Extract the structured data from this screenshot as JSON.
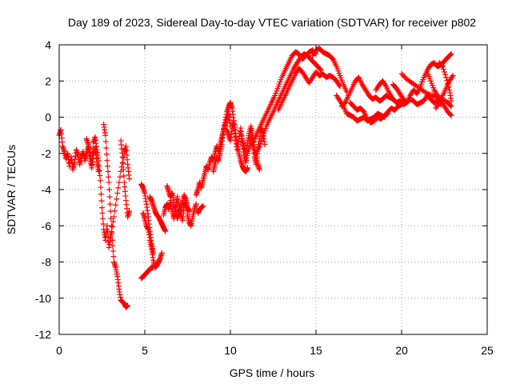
{
  "chart_data": {
    "type": "scatter",
    "title": "Day 189 of 2023, Sidereal Day-to-day VTEC variation (SDTVAR) for receiver p802",
    "xlabel": "GPS time / hours",
    "ylabel": "SDTVAR / TECUs",
    "xlim": [
      0,
      25
    ],
    "ylim": [
      -12,
      4
    ],
    "xticks": [
      0,
      5,
      10,
      15,
      20,
      25
    ],
    "xtick_labels": [
      "0",
      "5",
      "10",
      "15",
      "20",
      "25"
    ],
    "yticks": [
      -12,
      -10,
      -8,
      -6,
      -4,
      -2,
      0,
      2,
      4
    ],
    "ytick_labels": [
      "-12",
      "-10",
      "-8",
      "-6",
      "-4",
      "-2",
      "0",
      "2",
      "4"
    ],
    "grid": true,
    "legend": "none",
    "marker": "+",
    "color": "#ff0000",
    "series": [
      {
        "x": [
          0.0,
          0.1,
          0.2,
          0.3,
          0.4,
          0.5,
          0.6,
          0.7,
          0.8,
          0.9,
          1.0,
          1.1,
          1.2,
          1.3,
          1.4,
          1.5,
          1.6,
          1.7,
          1.8,
          1.9,
          2.0,
          2.1,
          2.2,
          2.3
        ],
        "y": [
          -1.0,
          -0.7,
          -1.6,
          -1.9,
          -2.3,
          -2.0,
          -2.7,
          -2.2,
          -2.9,
          -2.5,
          -1.8,
          -2.1,
          -2.6,
          -2.2,
          -1.9,
          -2.4,
          -2.0,
          -1.6,
          -2.3,
          -2.8,
          -2.1,
          -1.7,
          -2.5,
          -3.0
        ]
      },
      {
        "x": [
          1.6,
          1.7,
          1.8,
          1.9,
          2.0,
          2.1,
          2.2,
          2.3,
          2.4,
          2.5,
          2.6,
          2.7,
          2.8,
          2.9,
          3.0
        ],
        "y": [
          -1.2,
          -1.5,
          -2.0,
          -2.6,
          -1.4,
          -1.1,
          -1.8,
          -2.4,
          -3.5,
          -5.0,
          -6.2,
          -6.8,
          -6.0,
          -7.2,
          -6.5
        ]
      },
      {
        "x": [
          2.6,
          2.7,
          2.8,
          2.9,
          3.0,
          3.1,
          3.2,
          3.3,
          3.4,
          3.5,
          3.6,
          3.7,
          3.8,
          3.9,
          4.0
        ],
        "y": [
          -0.4,
          -1.0,
          -2.4,
          -3.6,
          -5.2,
          -6.8,
          -8.0,
          -8.3,
          -8.8,
          -9.5,
          -10.1,
          -10.2,
          -10.3,
          -10.5,
          -10.4
        ]
      },
      {
        "x": [
          3.0,
          3.2,
          3.4,
          3.6,
          3.8,
          3.9,
          4.0,
          4.1
        ],
        "y": [
          -6.6,
          -5.5,
          -4.2,
          -3.0,
          -2.0,
          -1.6,
          -2.6,
          -3.4
        ]
      },
      {
        "x": [
          3.6,
          3.7,
          3.8,
          3.9,
          4.0,
          4.1
        ],
        "y": [
          -1.3,
          -2.2,
          -3.6,
          -4.6,
          -5.5,
          -5.2
        ]
      },
      {
        "x": [
          4.8,
          4.9,
          5.0,
          5.1,
          5.2,
          5.3,
          5.4,
          5.5
        ],
        "y": [
          -3.7,
          -3.9,
          -4.2,
          -4.8,
          -5.5,
          -6.3,
          -7.0,
          -7.5
        ]
      },
      {
        "x": [
          4.9,
          5.0,
          5.1,
          5.2,
          5.3,
          5.4,
          5.5,
          5.6,
          5.7,
          5.8,
          5.9,
          6.0
        ],
        "y": [
          -5.3,
          -5.6,
          -6.0,
          -6.2,
          -6.8,
          -7.3,
          -7.9,
          -8.3,
          -8.2,
          -8.0,
          -7.8,
          -7.5
        ]
      },
      {
        "x": [
          4.8,
          4.9,
          5.0,
          5.1,
          5.2,
          5.3,
          5.4,
          5.5
        ],
        "y": [
          -8.9,
          -8.8,
          -8.7,
          -8.6,
          -8.5,
          -8.4,
          -8.3,
          -8.3
        ]
      },
      {
        "x": [
          5.3,
          5.4,
          5.5,
          5.6,
          5.7,
          5.8,
          5.9,
          6.0,
          6.1,
          6.2
        ],
        "y": [
          -4.4,
          -4.6,
          -4.9,
          -5.2,
          -5.4,
          -5.5,
          -5.7,
          -5.9,
          -6.1,
          -6.3
        ]
      },
      {
        "x": [
          6.1,
          6.2,
          6.3,
          6.4,
          6.5,
          6.6,
          6.7,
          6.8,
          6.9,
          7.0,
          7.1,
          7.2,
          7.3,
          7.4,
          7.5,
          7.6,
          7.7,
          7.8,
          7.9,
          8.0
        ],
        "y": [
          -5.4,
          -5.0,
          -4.8,
          -5.1,
          -4.6,
          -5.2,
          -5.6,
          -5.0,
          -4.4,
          -4.9,
          -5.3,
          -5.7,
          -4.9,
          -4.5,
          -5.4,
          -5.8,
          -6.0,
          -5.5,
          -5.1,
          -4.8
        ]
      },
      {
        "x": [
          6.3,
          6.4,
          6.5,
          6.6,
          6.7,
          6.8,
          6.9,
          7.0,
          7.1,
          7.2,
          7.3,
          7.4,
          7.5,
          7.6
        ],
        "y": [
          -3.8,
          -4.1,
          -4.4,
          -4.2,
          -4.7,
          -5.2,
          -5.6,
          -5.3,
          -5.0,
          -4.7,
          -4.3,
          -4.6,
          -5.0,
          -5.2
        ]
      },
      {
        "x": [
          8.0,
          8.1,
          8.2,
          8.3,
          8.4,
          8.5,
          8.6,
          8.7,
          8.8,
          8.9,
          9.0,
          9.1,
          9.2,
          9.3,
          9.4,
          9.5,
          9.6,
          9.7,
          9.8,
          9.9,
          10.0
        ],
        "y": [
          -4.3,
          -4.0,
          -3.6,
          -3.9,
          -3.5,
          -3.1,
          -2.7,
          -2.9,
          -2.5,
          -2.2,
          -2.4,
          -2.0,
          -1.6,
          -1.9,
          -1.5,
          -1.1,
          -0.7,
          -0.4,
          -0.1,
          0.2,
          -0.5
        ]
      },
      {
        "x": [
          8.1,
          8.2,
          8.3,
          8.4
        ],
        "y": [
          -5.3,
          -5.1,
          -5.0,
          -4.9
        ]
      },
      {
        "x": [
          9.0,
          9.1,
          9.2,
          9.3,
          9.4,
          9.5,
          9.6,
          9.7,
          9.8,
          9.9,
          10.0,
          10.1,
          10.2,
          10.3,
          10.4,
          10.5,
          10.6,
          10.7,
          10.8,
          10.9,
          11.0
        ],
        "y": [
          -3.0,
          -2.6,
          -2.2,
          -2.4,
          -2.0,
          -1.5,
          -0.8,
          -0.3,
          0.3,
          0.6,
          0.8,
          0.5,
          -0.2,
          -0.9,
          -1.5,
          -2.0,
          -2.4,
          -2.7,
          -2.9,
          -3.0,
          -2.8
        ]
      },
      {
        "x": [
          9.8,
          9.9,
          10.0,
          10.1,
          10.2,
          10.3,
          10.4,
          10.5,
          10.6,
          10.7,
          10.8,
          10.9,
          11.0,
          11.1,
          11.2,
          11.3,
          11.4,
          11.5,
          11.6,
          11.7,
          11.8,
          11.9,
          12.0
        ],
        "y": [
          -0.7,
          -1.0,
          -1.3,
          -0.6,
          -0.2,
          -1.1,
          -1.8,
          -1.2,
          -0.6,
          -1.4,
          -2.1,
          -2.5,
          -2.0,
          -1.6,
          -1.0,
          -1.4,
          -2.2,
          -2.6,
          -1.8,
          -1.2,
          -0.6,
          -0.9,
          -1.5
        ]
      },
      {
        "x": [
          10.6,
          10.7,
          10.8,
          10.9,
          11.0,
          11.1,
          11.2,
          11.3,
          11.4,
          11.5,
          11.6,
          11.7
        ],
        "y": [
          -0.8,
          -1.3,
          -1.6,
          -2.0,
          -1.4,
          -0.9,
          -0.5,
          -1.0,
          -1.7,
          -2.2,
          -2.6,
          -2.9
        ]
      },
      {
        "x": [
          11.2,
          11.4,
          11.6,
          11.8,
          12.0,
          12.2,
          12.4,
          12.6,
          12.8,
          13.0,
          13.2,
          13.4,
          13.6,
          13.8,
          14.0,
          14.2,
          14.4,
          14.6,
          14.8,
          15.0
        ],
        "y": [
          -1.6,
          -1.2,
          -0.8,
          -0.4,
          0.0,
          0.4,
          0.8,
          1.2,
          1.7,
          2.2,
          2.6,
          3.0,
          3.4,
          3.6,
          3.5,
          3.2,
          3.4,
          3.6,
          3.7,
          3.5
        ]
      },
      {
        "x": [
          11.5,
          11.7,
          11.9,
          12.1,
          12.3,
          12.5,
          12.7,
          12.9,
          13.1,
          13.3,
          13.5,
          13.7,
          13.9,
          14.1,
          14.3,
          14.5,
          14.7,
          14.9,
          15.1,
          15.3
        ],
        "y": [
          -2.0,
          -1.6,
          -1.0,
          -0.5,
          -0.1,
          0.3,
          0.7,
          1.1,
          1.5,
          1.9,
          2.3,
          2.7,
          3.0,
          3.3,
          3.5,
          3.4,
          3.2,
          3.0,
          2.8,
          2.6
        ]
      },
      {
        "x": [
          12.8,
          13.0,
          13.2,
          13.4,
          13.6,
          13.8,
          14.0,
          14.2,
          14.4,
          14.6,
          14.8,
          15.0,
          15.2,
          15.4,
          15.6,
          15.8,
          16.0,
          16.2,
          16.4
        ],
        "y": [
          0.4,
          0.8,
          1.2,
          1.6,
          2.0,
          2.4,
          2.7,
          2.5,
          2.2,
          1.9,
          2.2,
          2.5,
          2.3,
          2.4,
          2.2,
          2.3,
          2.2,
          2.0,
          1.7
        ]
      },
      {
        "x": [
          14.8,
          15.0,
          15.2,
          15.4,
          15.6,
          15.8,
          16.0,
          16.2,
          16.4,
          16.6,
          16.8
        ],
        "y": [
          3.4,
          3.7,
          3.8,
          3.6,
          3.5,
          3.4,
          3.2,
          2.8,
          2.3,
          1.8,
          1.4
        ]
      },
      {
        "x": [
          16.2,
          16.4,
          16.6,
          16.8,
          17.0,
          17.2,
          17.4,
          17.6,
          17.8,
          18.0,
          18.2,
          18.4,
          18.6,
          18.8,
          19.0,
          19.2,
          19.4,
          19.6,
          19.8,
          20.0
        ],
        "y": [
          1.2,
          0.9,
          0.6,
          0.2,
          0.1,
          0.0,
          -0.2,
          -0.1,
          0.0,
          -0.2,
          -0.1,
          0.0,
          0.2,
          0.1,
          0.0,
          0.3,
          0.5,
          0.4,
          0.6,
          0.7
        ]
      },
      {
        "x": [
          16.5,
          16.7,
          16.9,
          17.1,
          17.3,
          17.5,
          17.7,
          17.9,
          18.1,
          18.3,
          18.5,
          18.7,
          18.9,
          19.1,
          19.3,
          19.5
        ],
        "y": [
          0.6,
          0.8,
          1.2,
          1.6,
          2.0,
          2.2,
          1.8,
          1.5,
          1.2,
          1.0,
          1.1,
          0.9,
          1.0,
          1.2,
          1.1,
          1.0
        ]
      },
      {
        "x": [
          17.0,
          17.2,
          17.4,
          17.6,
          17.8,
          18.0,
          18.2,
          18.4,
          18.6,
          18.8,
          19.0,
          19.2
        ],
        "y": [
          0.8,
          0.6,
          0.4,
          0.5,
          0.3,
          -0.1,
          -0.3,
          -0.2,
          0.0,
          -0.1,
          0.1,
          0.2
        ]
      },
      {
        "x": [
          18.5,
          18.7,
          18.9,
          19.1,
          19.3,
          19.5,
          19.7,
          19.9,
          20.1,
          20.3,
          20.5,
          20.7,
          20.9,
          21.1,
          21.3,
          21.5,
          21.7,
          21.9,
          22.1,
          22.3
        ],
        "y": [
          1.5,
          1.8,
          2.0,
          1.7,
          1.3,
          1.0,
          0.8,
          0.9,
          0.7,
          0.8,
          1.0,
          0.9,
          0.7,
          0.8,
          0.9,
          1.2,
          1.0,
          0.8,
          0.9,
          0.7
        ]
      },
      {
        "x": [
          19.5,
          19.7,
          19.9,
          20.1,
          20.3,
          20.5,
          20.7,
          20.9,
          21.1,
          21.3,
          21.5,
          21.7,
          21.9,
          22.1,
          22.3,
          22.5,
          22.7,
          22.9
        ],
        "y": [
          1.8,
          1.6,
          1.3,
          1.0,
          0.8,
          1.2,
          1.5,
          1.3,
          1.7,
          2.2,
          2.6,
          2.9,
          3.0,
          2.8,
          2.9,
          3.1,
          3.3,
          3.5
        ]
      },
      {
        "x": [
          20.0,
          20.3,
          20.6,
          20.9,
          21.2,
          21.5,
          21.8,
          22.1,
          22.4,
          22.7,
          22.9
        ],
        "y": [
          2.4,
          2.1,
          1.9,
          1.7,
          1.5,
          1.3,
          1.2,
          1.1,
          1.0,
          0.8,
          0.6
        ]
      },
      {
        "x": [
          21.5,
          21.7,
          21.9,
          22.1,
          22.3,
          22.5,
          22.7,
          22.9
        ],
        "y": [
          2.5,
          2.0,
          1.5,
          1.2,
          0.9,
          0.6,
          0.3,
          0.1
        ]
      },
      {
        "x": [
          22.0,
          22.2,
          22.4,
          22.6,
          22.8,
          23.0
        ],
        "y": [
          0.5,
          0.8,
          1.2,
          1.6,
          2.0,
          2.3
        ]
      },
      {
        "x": [
          22.2,
          22.4,
          22.6,
          22.8,
          22.9
        ],
        "y": [
          3.0,
          2.8,
          2.2,
          1.5,
          0.9
        ]
      }
    ]
  }
}
